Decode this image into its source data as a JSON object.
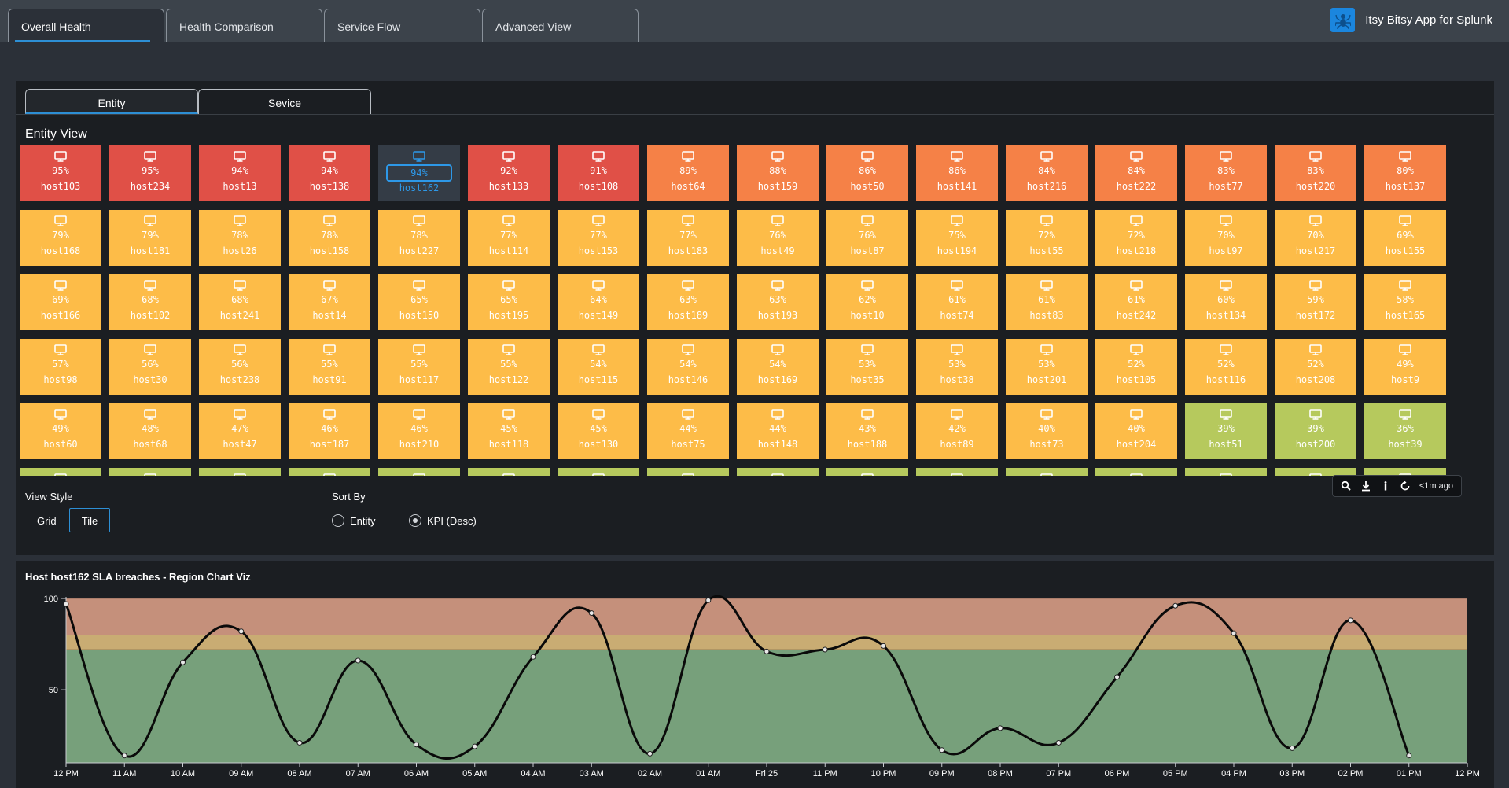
{
  "top_tabs": [
    "Overall Health",
    "Health Comparison",
    "Service Flow",
    "Advanced View"
  ],
  "active_top_tab": 0,
  "app_title": "Itsy Bitsy App for Splunk",
  "sub_tabs": [
    "Entity",
    "Sevice"
  ],
  "active_sub_tab": 0,
  "panel_title": "Entity View",
  "colors": {
    "critical": "#e05047",
    "high": "#f58147",
    "medium": "#fdbc48",
    "low": "#b6c95d",
    "selected": "#343c46",
    "accent": "#2d8fd5"
  },
  "selected_host": "host162",
  "tiles": [
    {
      "pct": "95%",
      "host": "host103",
      "status": "critical"
    },
    {
      "pct": "95%",
      "host": "host234",
      "status": "critical"
    },
    {
      "pct": "94%",
      "host": "host13",
      "status": "critical"
    },
    {
      "pct": "94%",
      "host": "host138",
      "status": "critical"
    },
    {
      "pct": "94%",
      "host": "host162",
      "status": "selected"
    },
    {
      "pct": "92%",
      "host": "host133",
      "status": "critical"
    },
    {
      "pct": "91%",
      "host": "host108",
      "status": "critical"
    },
    {
      "pct": "89%",
      "host": "host64",
      "status": "high"
    },
    {
      "pct": "88%",
      "host": "host159",
      "status": "high"
    },
    {
      "pct": "86%",
      "host": "host50",
      "status": "high"
    },
    {
      "pct": "86%",
      "host": "host141",
      "status": "high"
    },
    {
      "pct": "84%",
      "host": "host216",
      "status": "high"
    },
    {
      "pct": "84%",
      "host": "host222",
      "status": "high"
    },
    {
      "pct": "83%",
      "host": "host77",
      "status": "high"
    },
    {
      "pct": "83%",
      "host": "host220",
      "status": "high"
    },
    {
      "pct": "80%",
      "host": "host137",
      "status": "high"
    },
    {
      "pct": "79%",
      "host": "host168",
      "status": "medium"
    },
    {
      "pct": "79%",
      "host": "host181",
      "status": "medium"
    },
    {
      "pct": "78%",
      "host": "host26",
      "status": "medium"
    },
    {
      "pct": "78%",
      "host": "host158",
      "status": "medium"
    },
    {
      "pct": "78%",
      "host": "host227",
      "status": "medium"
    },
    {
      "pct": "77%",
      "host": "host114",
      "status": "medium"
    },
    {
      "pct": "77%",
      "host": "host153",
      "status": "medium"
    },
    {
      "pct": "77%",
      "host": "host183",
      "status": "medium"
    },
    {
      "pct": "76%",
      "host": "host49",
      "status": "medium"
    },
    {
      "pct": "76%",
      "host": "host87",
      "status": "medium"
    },
    {
      "pct": "75%",
      "host": "host194",
      "status": "medium"
    },
    {
      "pct": "72%",
      "host": "host55",
      "status": "medium"
    },
    {
      "pct": "72%",
      "host": "host218",
      "status": "medium"
    },
    {
      "pct": "70%",
      "host": "host97",
      "status": "medium"
    },
    {
      "pct": "70%",
      "host": "host217",
      "status": "medium"
    },
    {
      "pct": "69%",
      "host": "host155",
      "status": "medium"
    },
    {
      "pct": "69%",
      "host": "host166",
      "status": "medium"
    },
    {
      "pct": "68%",
      "host": "host102",
      "status": "medium"
    },
    {
      "pct": "68%",
      "host": "host241",
      "status": "medium"
    },
    {
      "pct": "67%",
      "host": "host14",
      "status": "medium"
    },
    {
      "pct": "65%",
      "host": "host150",
      "status": "medium"
    },
    {
      "pct": "65%",
      "host": "host195",
      "status": "medium"
    },
    {
      "pct": "64%",
      "host": "host149",
      "status": "medium"
    },
    {
      "pct": "63%",
      "host": "host189",
      "status": "medium"
    },
    {
      "pct": "63%",
      "host": "host193",
      "status": "medium"
    },
    {
      "pct": "62%",
      "host": "host10",
      "status": "medium"
    },
    {
      "pct": "61%",
      "host": "host74",
      "status": "medium"
    },
    {
      "pct": "61%",
      "host": "host83",
      "status": "medium"
    },
    {
      "pct": "61%",
      "host": "host242",
      "status": "medium"
    },
    {
      "pct": "60%",
      "host": "host134",
      "status": "medium"
    },
    {
      "pct": "59%",
      "host": "host172",
      "status": "medium"
    },
    {
      "pct": "58%",
      "host": "host165",
      "status": "medium"
    },
    {
      "pct": "57%",
      "host": "host98",
      "status": "medium"
    },
    {
      "pct": "56%",
      "host": "host30",
      "status": "medium"
    },
    {
      "pct": "56%",
      "host": "host238",
      "status": "medium"
    },
    {
      "pct": "55%",
      "host": "host91",
      "status": "medium"
    },
    {
      "pct": "55%",
      "host": "host117",
      "status": "medium"
    },
    {
      "pct": "55%",
      "host": "host122",
      "status": "medium"
    },
    {
      "pct": "54%",
      "host": "host115",
      "status": "medium"
    },
    {
      "pct": "54%",
      "host": "host146",
      "status": "medium"
    },
    {
      "pct": "54%",
      "host": "host169",
      "status": "medium"
    },
    {
      "pct": "53%",
      "host": "host35",
      "status": "medium"
    },
    {
      "pct": "53%",
      "host": "host38",
      "status": "medium"
    },
    {
      "pct": "53%",
      "host": "host201",
      "status": "medium"
    },
    {
      "pct": "52%",
      "host": "host105",
      "status": "medium"
    },
    {
      "pct": "52%",
      "host": "host116",
      "status": "medium"
    },
    {
      "pct": "52%",
      "host": "host208",
      "status": "medium"
    },
    {
      "pct": "49%",
      "host": "host9",
      "status": "medium"
    },
    {
      "pct": "49%",
      "host": "host60",
      "status": "medium"
    },
    {
      "pct": "48%",
      "host": "host68",
      "status": "medium"
    },
    {
      "pct": "47%",
      "host": "host47",
      "status": "medium"
    },
    {
      "pct": "46%",
      "host": "host187",
      "status": "medium"
    },
    {
      "pct": "46%",
      "host": "host210",
      "status": "medium"
    },
    {
      "pct": "45%",
      "host": "host118",
      "status": "medium"
    },
    {
      "pct": "45%",
      "host": "host130",
      "status": "medium"
    },
    {
      "pct": "44%",
      "host": "host75",
      "status": "medium"
    },
    {
      "pct": "44%",
      "host": "host148",
      "status": "medium"
    },
    {
      "pct": "43%",
      "host": "host188",
      "status": "medium"
    },
    {
      "pct": "42%",
      "host": "host89",
      "status": "medium"
    },
    {
      "pct": "40%",
      "host": "host73",
      "status": "medium"
    },
    {
      "pct": "40%",
      "host": "host204",
      "status": "medium"
    },
    {
      "pct": "39%",
      "host": "host51",
      "status": "low"
    },
    {
      "pct": "39%",
      "host": "host200",
      "status": "low"
    },
    {
      "pct": "36%",
      "host": "host39",
      "status": "low"
    }
  ],
  "partial_row_colors": [
    "low",
    "low",
    "low",
    "low",
    "low",
    "low",
    "low",
    "low",
    "low",
    "low",
    "low",
    "low",
    "low",
    "low",
    "low",
    "low"
  ],
  "toolbar": {
    "icons": [
      "search-icon",
      "download-icon",
      "info-icon",
      "refresh-icon"
    ],
    "time": "<1m ago"
  },
  "view_style": {
    "label": "View Style",
    "options": [
      "Grid",
      "Tile"
    ],
    "selected": "Tile"
  },
  "sort_by": {
    "label": "Sort By",
    "options": [
      "Entity",
      "KPI (Desc)"
    ],
    "selected": "KPI (Desc)"
  },
  "chart_data": {
    "type": "line",
    "title": "Host host162 SLA breaches - Region Chart Viz",
    "x": [
      "12 PM",
      "11 AM",
      "10 AM",
      "09 AM",
      "08 AM",
      "07 AM",
      "06 AM",
      "05 AM",
      "04 AM",
      "03 AM",
      "02 AM",
      "01 AM",
      "Fri 25",
      "11 PM",
      "10 PM",
      "09 PM",
      "08 PM",
      "07 PM",
      "06 PM",
      "05 PM",
      "04 PM",
      "03 PM",
      "02 PM",
      "01 PM",
      "12 PM"
    ],
    "series": [
      {
        "values": [
          97,
          14,
          65,
          82,
          21,
          66,
          20,
          19,
          68,
          92,
          15,
          99,
          71,
          72,
          74,
          17,
          29,
          21,
          57,
          96,
          81,
          18,
          88,
          14,
          null
        ]
      }
    ],
    "ylim": [
      10,
      100
    ],
    "yticks": [
      50,
      100
    ],
    "regions": [
      {
        "from": 80,
        "to": 100,
        "color": "#c5907b"
      },
      {
        "from": 72,
        "to": 80,
        "color": "#c9ac73"
      },
      {
        "from": 10,
        "to": 72,
        "color": "#77a07b"
      }
    ]
  }
}
